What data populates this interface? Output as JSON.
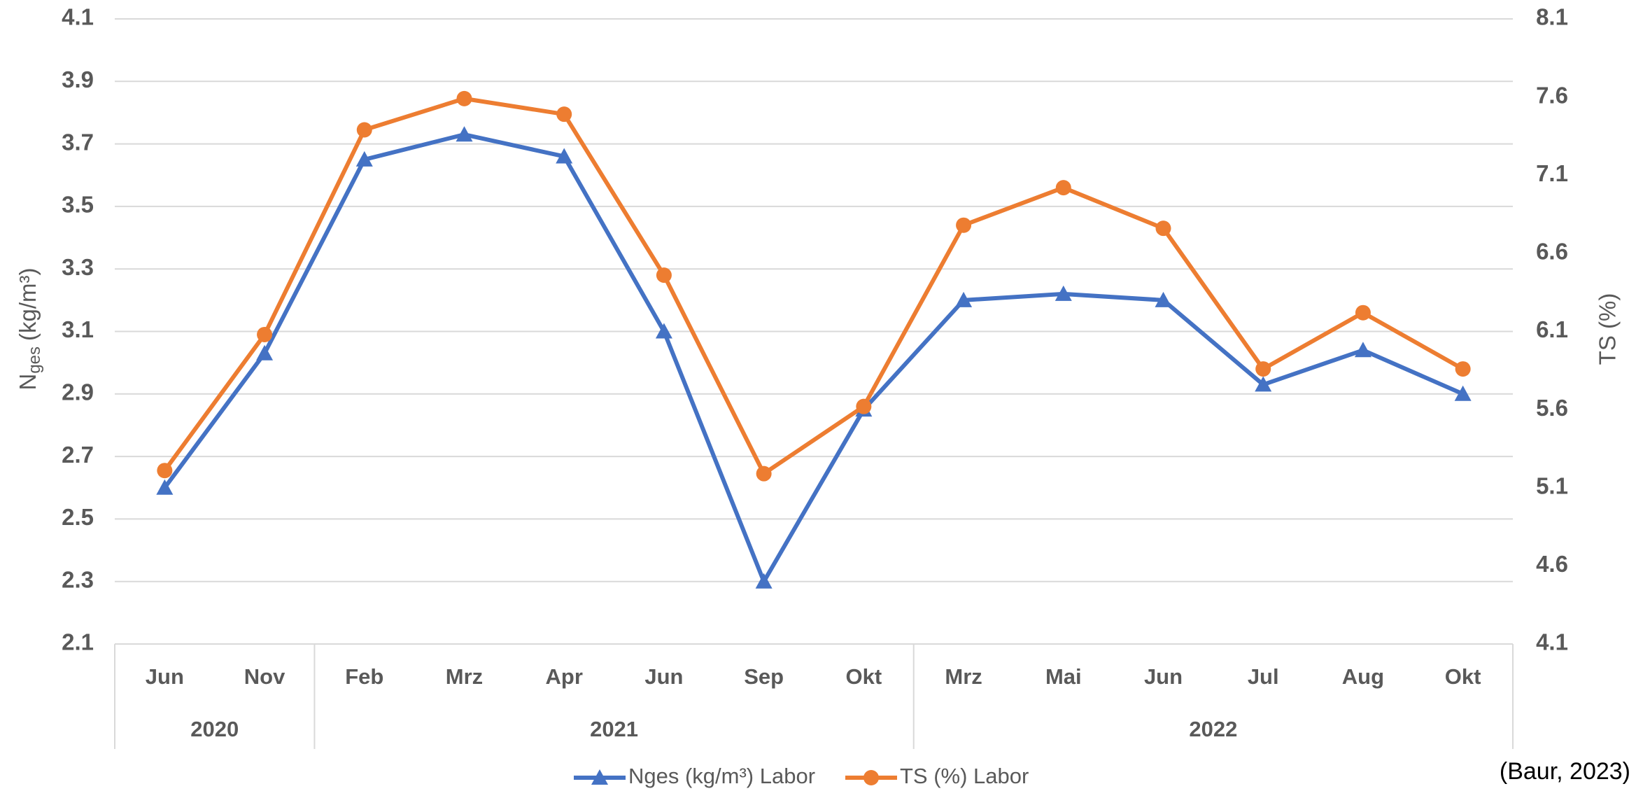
{
  "chart_data": {
    "type": "line",
    "categories": [
      "Jun",
      "Nov",
      "Feb",
      "Mrz",
      "Apr",
      "Jun",
      "Sep",
      "Okt",
      "Mrz",
      "Mai",
      "Jun",
      "Jul",
      "Aug",
      "Okt"
    ],
    "groups": [
      {
        "label": "2020",
        "size": 2
      },
      {
        "label": "2021",
        "size": 6
      },
      {
        "label": "2022",
        "size": 6
      }
    ],
    "y_label": {
      "main": "N",
      "sub": "ges",
      "unit": "(kg/m³)"
    },
    "y2_label": "TS (%)",
    "series": [
      {
        "name": "Nges (kg/m³) Labor",
        "color": "#4472c4",
        "marker": "triangle",
        "values": [
          2.6,
          3.03,
          3.65,
          3.73,
          3.66,
          3.1,
          2.3,
          2.85,
          3.2,
          3.22,
          3.2,
          2.93,
          3.04,
          2.9
        ]
      },
      {
        "name": "TS (%) Labor",
        "color": "#ed7d31",
        "marker": "circle",
        "axis": "y2",
        "values": [
          5.21,
          6.08,
          7.39,
          7.59,
          7.49,
          6.46,
          5.19,
          5.62,
          6.78,
          7.02,
          6.76,
          5.86,
          6.22,
          5.86
        ]
      }
    ],
    "ylim": [
      2.1,
      4.1
    ],
    "yticks": [
      2.1,
      2.3,
      2.5,
      2.7,
      2.9,
      3.1,
      3.3,
      3.5,
      3.7,
      3.9,
      4.1
    ],
    "y2lim": [
      4.1,
      8.1
    ],
    "y2ticks": [
      4.1,
      4.6,
      5.1,
      5.6,
      6.1,
      6.6,
      7.1,
      7.6,
      8.1
    ],
    "grid": true,
    "legend": "bottom",
    "source": "(Baur, 2023)"
  }
}
